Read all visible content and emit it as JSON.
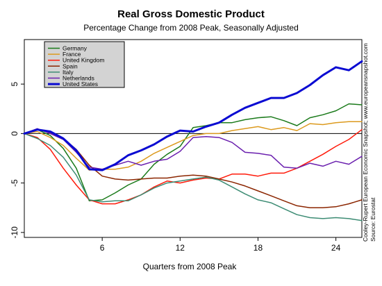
{
  "chart_data": {
    "type": "line",
    "title": "Real Gross Domestic Product",
    "subtitle": "Percentage Change from 2008 Peak, Seasonally Adjusted",
    "xlabel": "Quarters from 2008 Peak",
    "ylabel": "",
    "xlim": [
      0,
      26
    ],
    "ylim": [
      -10.5,
      9.5
    ],
    "x_ticks": [
      6,
      12,
      18,
      24
    ],
    "y_ticks": [
      5,
      0,
      -5,
      -10
    ],
    "grid": false,
    "zero_line": true,
    "legend_position": "top-left",
    "credits": [
      "Cooley-Rupert European Economic Snapshot; www.europeansnapshot.com",
      "Source: Eurostat"
    ],
    "x": [
      0,
      1,
      2,
      3,
      4,
      5,
      6,
      7,
      8,
      9,
      10,
      11,
      12,
      13,
      14,
      15,
      16,
      17,
      18,
      19,
      20,
      21,
      22,
      23,
      24,
      25,
      26
    ],
    "series": [
      {
        "name": "Germany",
        "color": "#1a7a1a",
        "width": 1.5,
        "values": [
          0,
          0.4,
          -0.2,
          -1.5,
          -3.5,
          -6.8,
          -6.7,
          -6.0,
          -5.2,
          -4.6,
          -3.1,
          -2.1,
          -1.3,
          0.6,
          0.8,
          1.1,
          1.1,
          1.4,
          1.6,
          1.7,
          1.3,
          0.8,
          1.6,
          1.9,
          2.3,
          3.0,
          2.9
        ]
      },
      {
        "name": "France",
        "color": "#dc9a1e",
        "width": 1.5,
        "values": [
          0,
          0.2,
          -0.4,
          -1.2,
          -2.5,
          -3.7,
          -3.6,
          -3.6,
          -3.4,
          -2.8,
          -2.0,
          -1.4,
          -0.8,
          -0.2,
          0.0,
          0.0,
          0.3,
          0.5,
          0.7,
          0.4,
          0.6,
          0.3,
          1.0,
          0.9,
          1.1,
          1.2,
          1.2
        ]
      },
      {
        "name": "United Kingdom",
        "color": "#ff1a0a",
        "width": 1.5,
        "values": [
          0,
          -0.4,
          -1.6,
          -3.5,
          -5.2,
          -6.7,
          -7.1,
          -7.1,
          -6.7,
          -6.2,
          -5.4,
          -4.8,
          -5.0,
          -4.7,
          -4.5,
          -4.6,
          -4.1,
          -4.1,
          -4.3,
          -4.0,
          -4.0,
          -3.5,
          -2.8,
          -2.1,
          -1.3,
          -0.6,
          0.4
        ]
      },
      {
        "name": "Spain",
        "color": "#8b2500",
        "width": 1.5,
        "values": [
          0,
          0.4,
          0.1,
          -0.5,
          -1.6,
          -3.2,
          -4.3,
          -4.6,
          -4.7,
          -4.6,
          -4.5,
          -4.5,
          -4.3,
          -4.2,
          -4.3,
          -4.6,
          -4.9,
          -5.3,
          -5.8,
          -6.3,
          -6.8,
          -7.3,
          -7.5,
          -7.5,
          -7.4,
          -7.1,
          -6.7
        ]
      },
      {
        "name": "Italy",
        "color": "#3d8c74",
        "width": 1.5,
        "values": [
          0,
          -0.5,
          -1.2,
          -2.4,
          -4.2,
          -6.7,
          -6.9,
          -6.8,
          -6.8,
          -6.2,
          -5.5,
          -5.0,
          -4.8,
          -4.6,
          -4.4,
          -4.7,
          -5.4,
          -6.1,
          -6.7,
          -7.0,
          -7.6,
          -8.2,
          -8.5,
          -8.6,
          -8.5,
          -8.6,
          -8.8
        ]
      },
      {
        "name": "Netherlands",
        "color": "#6a1fae",
        "width": 1.5,
        "values": [
          0,
          0.5,
          0.0,
          -0.6,
          -1.9,
          -3.4,
          -3.6,
          -3.2,
          -2.8,
          -3.2,
          -2.8,
          -2.6,
          -1.8,
          -0.4,
          -0.3,
          -0.4,
          -0.9,
          -1.9,
          -2.0,
          -2.2,
          -3.4,
          -3.5,
          -3.0,
          -3.3,
          -2.8,
          -3.1,
          -2.3
        ]
      },
      {
        "name": "United States",
        "color": "#0a0ad2",
        "width": 3,
        "values": [
          0,
          0.4,
          0.2,
          -0.5,
          -1.7,
          -3.6,
          -3.7,
          -3.1,
          -2.2,
          -1.7,
          -1.1,
          -0.3,
          0.3,
          0.2,
          0.7,
          1.1,
          1.9,
          2.6,
          3.1,
          3.6,
          3.6,
          4.1,
          4.9,
          5.9,
          6.7,
          6.4,
          7.3
        ]
      }
    ]
  }
}
